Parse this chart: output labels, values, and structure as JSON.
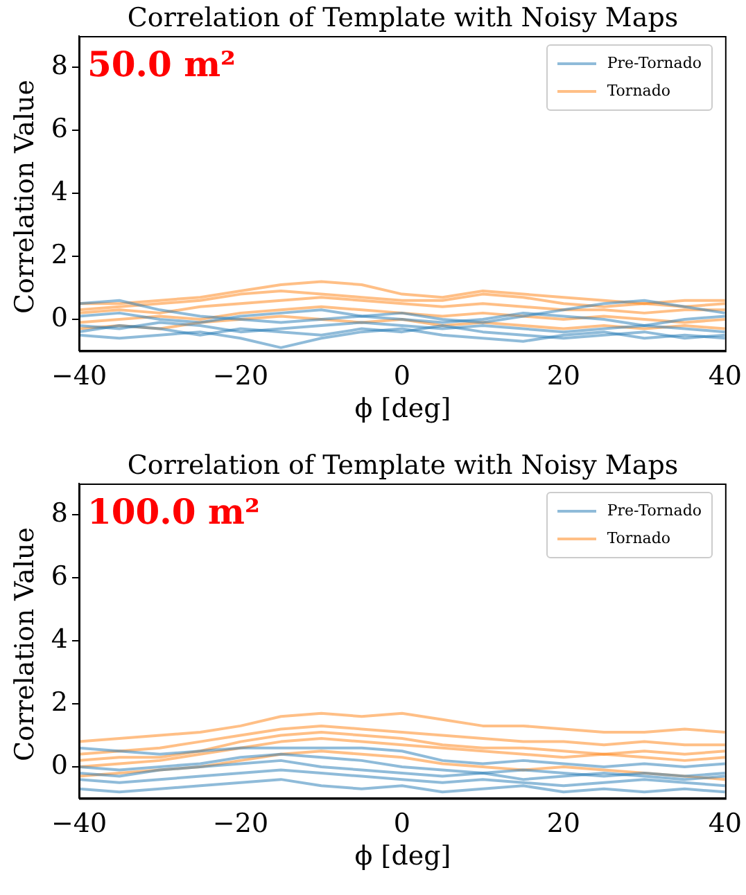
{
  "chart_data": [
    {
      "type": "line",
      "title": "Correlation of Template with Noisy Maps",
      "xlabel": "ϕ [deg]",
      "ylabel": "Correlation Value",
      "annotations": [
        "50.0 m²"
      ],
      "x": [
        -40,
        -35,
        -30,
        -25,
        -20,
        -15,
        -10,
        -5,
        0,
        5,
        10,
        15,
        20,
        25,
        30,
        35,
        40
      ],
      "xlim": [
        -40,
        40
      ],
      "xticks": [
        -40,
        -20,
        0,
        20,
        40
      ],
      "ylim": [
        -1,
        9
      ],
      "yticks": [
        0,
        2,
        4,
        6,
        8
      ],
      "grid": false,
      "legend": "top right",
      "marker": "none",
      "series": [
        {
          "name": "Pre-Tornado",
          "color": "#1f77b4",
          "values": [
            0.5,
            0.6,
            0.3,
            0.1,
            0.0,
            -0.1,
            0.0,
            0.1,
            0.2,
            0.0,
            -0.1,
            0.1,
            0.3,
            0.5,
            0.6,
            0.4,
            0.2
          ]
        },
        {
          "color": "#1f77b4",
          "values": [
            -0.2,
            -0.3,
            -0.1,
            -0.2,
            -0.4,
            -0.3,
            -0.2,
            -0.1,
            -0.2,
            -0.3,
            -0.2,
            -0.3,
            -0.4,
            -0.3,
            -0.2,
            -0.3,
            -0.4
          ]
        },
        {
          "color": "#1f77b4",
          "values": [
            -0.5,
            -0.6,
            -0.5,
            -0.4,
            -0.6,
            -0.9,
            -0.6,
            -0.4,
            -0.3,
            -0.5,
            -0.6,
            -0.7,
            -0.5,
            -0.4,
            -0.6,
            -0.5,
            -0.6
          ]
        },
        {
          "color": "#1f77b4",
          "values": [
            0.1,
            0.2,
            0.0,
            -0.1,
            0.1,
            0.2,
            0.3,
            0.1,
            0.0,
            -0.1,
            0.0,
            0.2,
            0.1,
            0.0,
            -0.2,
            0.0,
            0.1
          ]
        },
        {
          "color": "#1f77b4",
          "values": [
            -0.4,
            -0.2,
            -0.3,
            -0.5,
            -0.3,
            -0.4,
            -0.5,
            -0.3,
            -0.4,
            -0.2,
            -0.4,
            -0.5,
            -0.6,
            -0.5,
            -0.4,
            -0.6,
            -0.5
          ]
        },
        {
          "name": "Tornado",
          "color": "#ff7f0e",
          "values": [
            0.5,
            0.5,
            0.6,
            0.7,
            0.9,
            1.1,
            1.2,
            1.1,
            0.8,
            0.7,
            0.9,
            0.8,
            0.7,
            0.6,
            0.5,
            0.6,
            0.6
          ]
        },
        {
          "color": "#ff7f0e",
          "values": [
            0.2,
            0.3,
            0.2,
            0.4,
            0.5,
            0.6,
            0.7,
            0.6,
            0.5,
            0.4,
            0.5,
            0.4,
            0.3,
            0.3,
            0.2,
            0.3,
            0.3
          ]
        },
        {
          "color": "#ff7f0e",
          "values": [
            -0.1,
            0.0,
            0.1,
            0.0,
            0.2,
            0.3,
            0.4,
            0.3,
            0.2,
            0.1,
            0.2,
            0.1,
            0.0,
            0.1,
            0.0,
            -0.1,
            0.0
          ]
        },
        {
          "color": "#ff7f0e",
          "values": [
            -0.3,
            -0.2,
            -0.3,
            -0.1,
            0.0,
            0.1,
            0.0,
            -0.1,
            0.0,
            -0.2,
            -0.1,
            -0.2,
            -0.3,
            -0.2,
            -0.3,
            -0.2,
            -0.3
          ]
        },
        {
          "color": "#ff7f0e",
          "values": [
            0.3,
            0.4,
            0.5,
            0.6,
            0.8,
            0.9,
            0.8,
            0.7,
            0.6,
            0.6,
            0.8,
            0.7,
            0.5,
            0.4,
            0.5,
            0.4,
            0.5
          ]
        }
      ]
    },
    {
      "type": "line",
      "title": "Correlation of Template with Noisy Maps",
      "xlabel": "ϕ [deg]",
      "ylabel": "Correlation Value",
      "annotations": [
        "100.0 m²"
      ],
      "x": [
        -40,
        -35,
        -30,
        -25,
        -20,
        -15,
        -10,
        -5,
        0,
        5,
        10,
        15,
        20,
        25,
        30,
        35,
        40
      ],
      "xlim": [
        -40,
        40
      ],
      "xticks": [
        -40,
        -20,
        0,
        20,
        40
      ],
      "ylim": [
        -1,
        9
      ],
      "yticks": [
        0,
        2,
        4,
        6,
        8
      ],
      "grid": false,
      "legend": "top right",
      "marker": "none",
      "series": [
        {
          "name": "Pre-Tornado",
          "color": "#1f77b4",
          "values": [
            0.6,
            0.5,
            0.4,
            0.5,
            0.6,
            0.6,
            0.6,
            0.6,
            0.5,
            0.2,
            0.1,
            0.2,
            0.1,
            0.0,
            0.1,
            0.0,
            0.1
          ]
        },
        {
          "color": "#1f77b4",
          "values": [
            0.0,
            -0.1,
            0.0,
            0.1,
            0.3,
            0.4,
            0.3,
            0.2,
            0.0,
            -0.1,
            -0.2,
            -0.1,
            -0.2,
            -0.3,
            -0.2,
            -0.3,
            -0.2
          ]
        },
        {
          "color": "#1f77b4",
          "values": [
            -0.4,
            -0.5,
            -0.4,
            -0.3,
            -0.2,
            -0.1,
            -0.2,
            -0.3,
            -0.4,
            -0.5,
            -0.4,
            -0.5,
            -0.6,
            -0.5,
            -0.4,
            -0.5,
            -0.6
          ]
        },
        {
          "color": "#1f77b4",
          "values": [
            -0.7,
            -0.8,
            -0.7,
            -0.6,
            -0.5,
            -0.4,
            -0.6,
            -0.7,
            -0.6,
            -0.8,
            -0.7,
            -0.6,
            -0.8,
            -0.7,
            -0.8,
            -0.7,
            -0.8
          ]
        },
        {
          "color": "#1f77b4",
          "values": [
            -0.2,
            -0.3,
            -0.1,
            0.0,
            0.1,
            0.2,
            0.0,
            -0.1,
            -0.2,
            -0.3,
            -0.2,
            -0.4,
            -0.3,
            -0.2,
            -0.3,
            -0.4,
            -0.3
          ]
        },
        {
          "name": "Tornado",
          "color": "#ff7f0e",
          "values": [
            0.8,
            0.9,
            1.0,
            1.1,
            1.3,
            1.6,
            1.7,
            1.6,
            1.7,
            1.5,
            1.3,
            1.3,
            1.2,
            1.1,
            1.1,
            1.2,
            1.1
          ]
        },
        {
          "color": "#ff7f0e",
          "values": [
            0.4,
            0.5,
            0.6,
            0.8,
            1.0,
            1.2,
            1.3,
            1.2,
            1.1,
            1.0,
            0.9,
            0.8,
            0.8,
            0.7,
            0.8,
            0.7,
            0.7
          ]
        },
        {
          "color": "#ff7f0e",
          "values": [
            0.0,
            0.1,
            0.2,
            0.4,
            0.6,
            0.8,
            0.9,
            0.8,
            0.7,
            0.6,
            0.5,
            0.4,
            0.3,
            0.4,
            0.3,
            0.2,
            0.3
          ]
        },
        {
          "color": "#ff7f0e",
          "values": [
            -0.3,
            -0.2,
            -0.1,
            0.0,
            0.2,
            0.4,
            0.5,
            0.4,
            0.3,
            0.1,
            0.0,
            -0.1,
            0.0,
            -0.1,
            -0.2,
            -0.3,
            -0.4
          ]
        },
        {
          "color": "#ff7f0e",
          "values": [
            0.2,
            0.3,
            0.3,
            0.5,
            0.8,
            1.0,
            1.1,
            1.0,
            0.9,
            0.7,
            0.6,
            0.6,
            0.5,
            0.4,
            0.5,
            0.4,
            0.5
          ]
        }
      ]
    }
  ]
}
